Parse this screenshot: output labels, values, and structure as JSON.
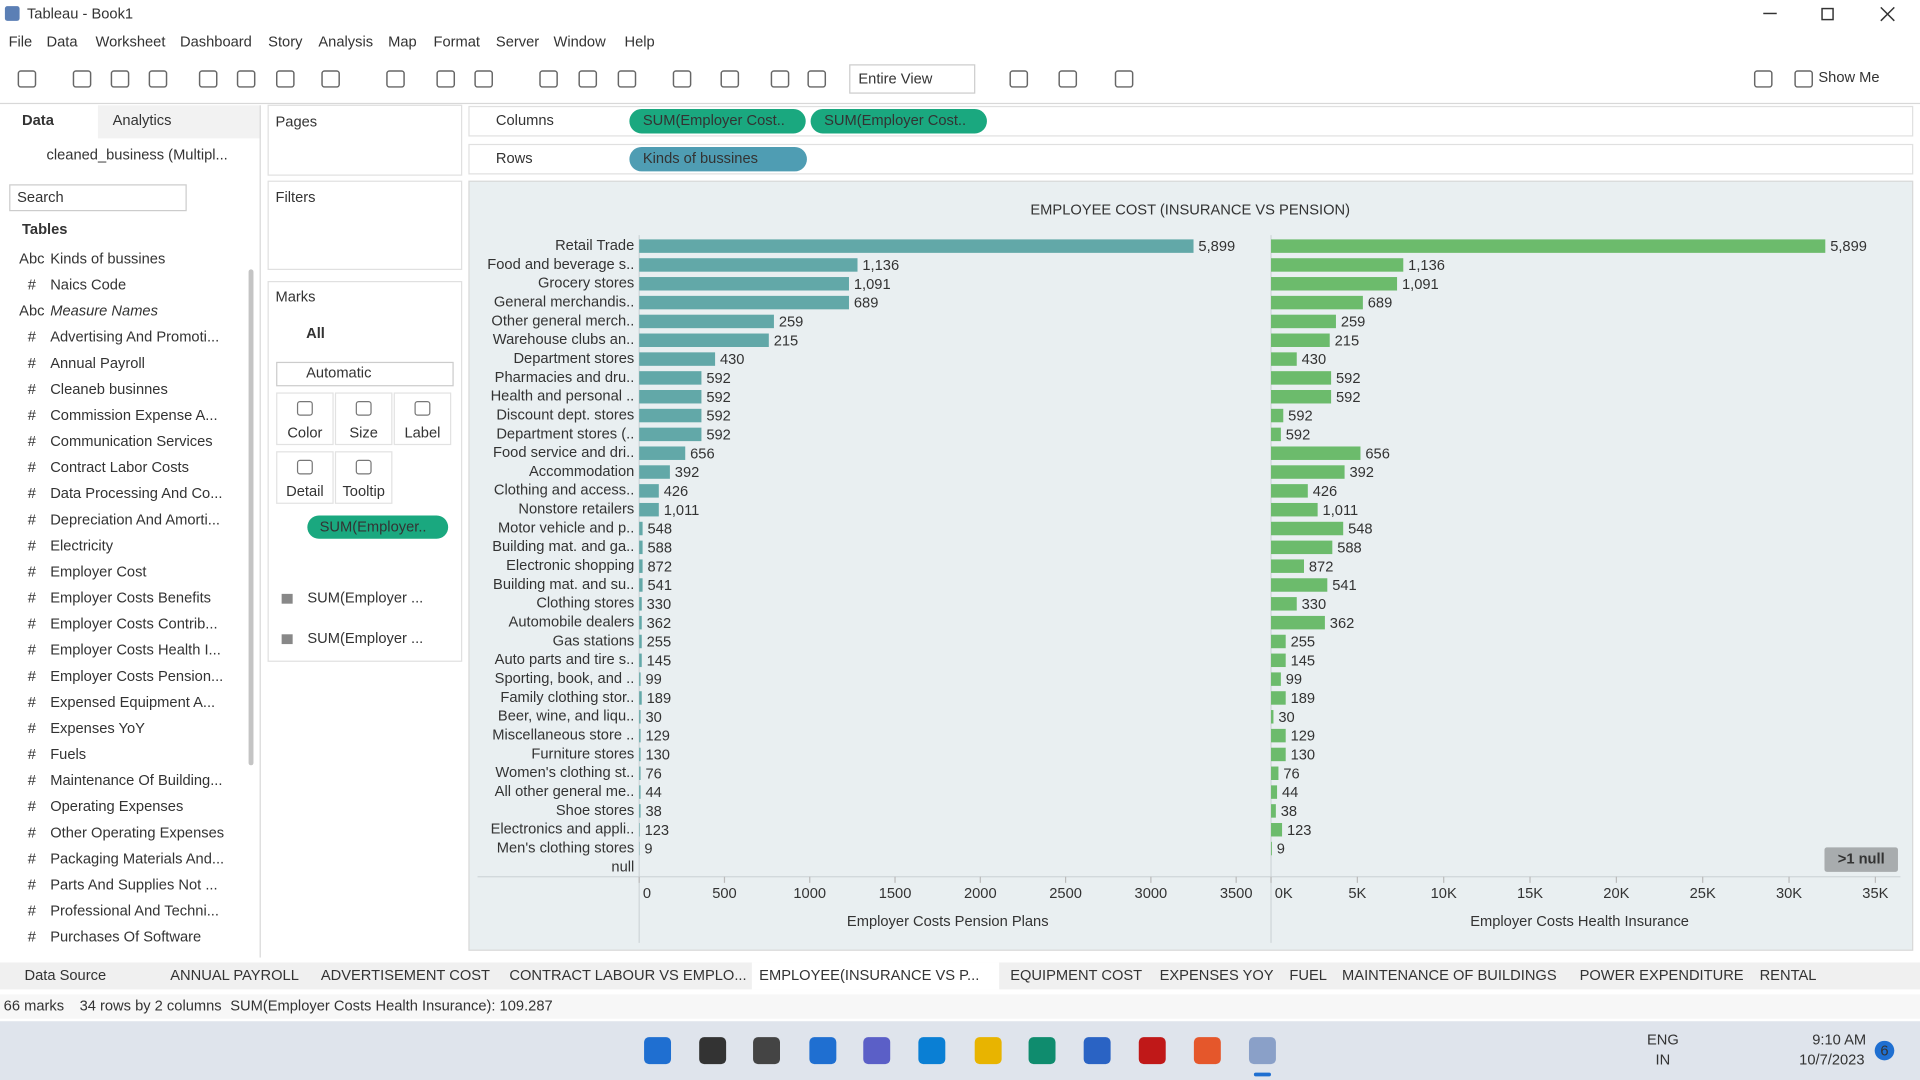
{
  "window": {
    "title": "Tableau - Book1"
  },
  "menu": [
    "File",
    "Data",
    "Worksheet",
    "Dashboard",
    "Story",
    "Analysis",
    "Map",
    "Format",
    "Server",
    "Window",
    "Help"
  ],
  "toolbar": {
    "view_mode": "Entire View",
    "show_me": "Show Me"
  },
  "data_pane": {
    "tabs": [
      "Data",
      "Analytics"
    ],
    "source": "cleaned_business (Multipl...",
    "search_placeholder": "Search",
    "tables_heading": "Tables",
    "fields": [
      {
        "icon": "Abc",
        "name": "Kinds of bussines"
      },
      {
        "icon": "#",
        "name": "Naics Code"
      },
      {
        "icon": "Abc",
        "name": "Measure Names",
        "italic": true
      },
      {
        "icon": "#",
        "name": "Advertising And Promoti..."
      },
      {
        "icon": "#",
        "name": "Annual Payroll"
      },
      {
        "icon": "#",
        "name": "Cleaneb businnes"
      },
      {
        "icon": "#",
        "name": "Commission Expense A..."
      },
      {
        "icon": "#",
        "name": "Communication Services"
      },
      {
        "icon": "#",
        "name": "Contract Labor Costs"
      },
      {
        "icon": "#",
        "name": "Data Processing And Co..."
      },
      {
        "icon": "#",
        "name": "Depreciation And Amorti..."
      },
      {
        "icon": "#",
        "name": "Electricity"
      },
      {
        "icon": "#",
        "name": "Employer Cost"
      },
      {
        "icon": "#",
        "name": "Employer Costs Benefits"
      },
      {
        "icon": "#",
        "name": "Employer Costs Contrib..."
      },
      {
        "icon": "#",
        "name": "Employer Costs Health I..."
      },
      {
        "icon": "#",
        "name": "Employer Costs Pension..."
      },
      {
        "icon": "#",
        "name": "Expensed Equipment A..."
      },
      {
        "icon": "#",
        "name": "Expenses YoY"
      },
      {
        "icon": "#",
        "name": "Fuels"
      },
      {
        "icon": "#",
        "name": "Maintenance Of Building..."
      },
      {
        "icon": "#",
        "name": "Operating Expenses"
      },
      {
        "icon": "#",
        "name": "Other Operating Expenses"
      },
      {
        "icon": "#",
        "name": "Packaging Materials And..."
      },
      {
        "icon": "#",
        "name": "Parts And Supplies Not ..."
      },
      {
        "icon": "#",
        "name": "Professional And Techni..."
      },
      {
        "icon": "#",
        "name": "Purchases Of Software"
      }
    ]
  },
  "shelves": {
    "pages": "Pages",
    "filters": "Filters",
    "columns_label": "Columns",
    "columns": [
      "SUM(Employer Cost..",
      "SUM(Employer Cost.."
    ],
    "rows_label": "Rows",
    "rows": [
      "Kinds of bussines"
    ]
  },
  "marks": {
    "title": "Marks",
    "all": "All",
    "mark_type": "Automatic",
    "buttons": [
      "Color",
      "Size",
      "Label",
      "Detail",
      "Tooltip"
    ],
    "label_pill": "SUM(Employer..",
    "measures": [
      "SUM(Employer ...",
      "SUM(Employer ..."
    ]
  },
  "chart_data": {
    "type": "bar",
    "orientation": "horizontal",
    "title": "EMPLOYEE COST (INSURANCE VS PENSION)",
    "categories": [
      "Retail Trade",
      "Food and beverage s..",
      "Grocery stores",
      "General merchandis..",
      "Other general merch..",
      "Warehouse clubs an..",
      "Department stores",
      "Pharmacies and dru..",
      "Health and personal ..",
      "Discount dept. stores",
      "Department stores (..",
      "Food service and dri..",
      "Accommodation",
      "Clothing and access..",
      "Nonstore retailers",
      "Motor vehicle and p..",
      "Building mat. and ga..",
      "Electronic shopping",
      "Building mat. and su..",
      "Clothing stores",
      "Automobile dealers",
      "Gas stations",
      "Auto parts and tire s..",
      "Sporting, book, and ..",
      "Family clothing stor..",
      "Beer, wine, and liqu..",
      "Miscellaneous store ..",
      "Furniture stores",
      "Women's clothing st..",
      "All other general me..",
      "Shoe stores",
      "Electronics and appli..",
      "Men's clothing stores",
      "null"
    ],
    "label_texts": [
      "5,899",
      "1,136",
      "1,091",
      "689",
      "259",
      "215",
      "430",
      "592",
      "592",
      "592",
      "592",
      "656",
      "392",
      "426",
      "1,011",
      "548",
      "588",
      "872",
      "541",
      "330",
      "362",
      "255",
      "145",
      "99",
      "189",
      "30",
      "129",
      "130",
      "76",
      "44",
      "38",
      "123",
      "9",
      null
    ],
    "series": [
      {
        "name": "Employer Costs Pension Plans",
        "color": "#62a8a8",
        "xlim": [
          0,
          3690
        ],
        "xticks": [
          0,
          500,
          1000,
          1500,
          2000,
          2500,
          3000,
          3500
        ],
        "values": [
          3250,
          1280,
          1230,
          1230,
          790,
          760,
          445,
          365,
          365,
          365,
          365,
          270,
          180,
          115,
          115,
          20,
          20,
          20,
          20,
          15,
          15,
          15,
          15,
          8,
          15,
          8,
          8,
          8,
          8,
          8,
          8,
          3,
          2,
          null
        ]
      },
      {
        "name": "Employer Costs Health Insurance",
        "color": "#6cbb6c",
        "xlim": [
          0,
          36450
        ],
        "xticks": [
          {
            "value": 0,
            "label": "0K"
          },
          {
            "value": 5000,
            "label": "5K"
          },
          {
            "value": 10000,
            "label": "10K"
          },
          {
            "value": 15000,
            "label": "15K"
          },
          {
            "value": 20000,
            "label": "20K"
          },
          {
            "value": 25000,
            "label": "25K"
          },
          {
            "value": 30000,
            "label": "30K"
          },
          {
            "value": 35000,
            "label": "35K"
          }
        ],
        "values": [
          32100,
          7660,
          7300,
          5320,
          3760,
          3400,
          1490,
          3480,
          3480,
          710,
          570,
          5180,
          4260,
          2130,
          2700,
          4180,
          3550,
          1910,
          3260,
          1490,
          3120,
          850,
          850,
          570,
          850,
          140,
          850,
          850,
          430,
          350,
          280,
          640,
          50,
          null
        ]
      }
    ],
    "null_indicator": ">1 null"
  },
  "sheet_tabs": {
    "data_source": "Data Source",
    "tabs": [
      "ANNUAL PAYROLL",
      "ADVERTISEMENT COST",
      "CONTRACT LABOUR VS EMPLO...",
      "EMPLOYEE(INSURANCE VS P...",
      "EQUIPMENT COST",
      "EXPENSES YOY",
      "FUEL",
      "MAINTENANCE OF BUILDINGS",
      "POWER EXPENDITURE",
      "RENTAL"
    ],
    "active": 3
  },
  "status_bar": [
    "66 marks",
    "34 rows by 2 columns",
    "SUM(Employer Costs Health Insurance): 109.287"
  ],
  "taskbar": {
    "language": "ENG",
    "region": "IN",
    "time": "9:10 AM",
    "date": "10/7/2023",
    "badge": "6"
  }
}
